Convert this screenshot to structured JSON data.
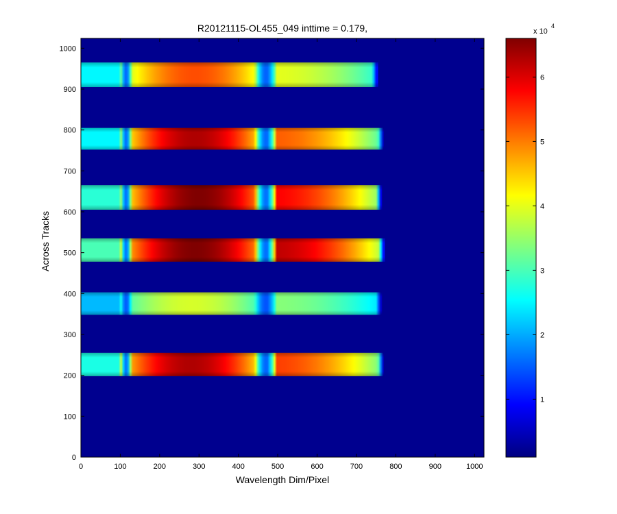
{
  "chart_data": {
    "type": "heatmap",
    "title": "R20121115-OL455_049 inttime = 0.179,",
    "xlabel": "Wavelength Dim/Pixel",
    "ylabel": "Across Tracks",
    "xlim": [
      0,
      1024
    ],
    "ylim": [
      0,
      1024
    ],
    "xticks": [
      "0",
      "100",
      "200",
      "300",
      "400",
      "500",
      "600",
      "700",
      "800",
      "900",
      "1000"
    ],
    "yticks": [
      "0",
      "100",
      "200",
      "300",
      "400",
      "500",
      "600",
      "700",
      "800",
      "900",
      "1000"
    ],
    "colormap": "jet",
    "background_color": "#00008f",
    "colorbar": {
      "ticks": [
        "1",
        "2",
        "3",
        "4",
        "5",
        "6"
      ],
      "exponent_base": "x 10",
      "exponent_power": "4",
      "range": [
        1000,
        66000
      ]
    },
    "spectral_windows": [
      {
        "x_start": 0,
        "x_end": 770
      },
      {
        "gap_center": 115,
        "gap_width": 14
      },
      {
        "gap_center": 470,
        "gap_width": 28
      }
    ],
    "bands": [
      {
        "y_bottom": 905,
        "y_top": 965,
        "x_end": 755,
        "edge_value": 25000,
        "peak_value": 53000,
        "peak_x": 290,
        "right_value": 40000
      },
      {
        "y_bottom": 752,
        "y_top": 805,
        "x_end": 770,
        "edge_value": 25000,
        "peak_value": 63000,
        "peak_x": 290,
        "right_value": 52000
      },
      {
        "y_bottom": 605,
        "y_top": 665,
        "x_end": 765,
        "edge_value": 28000,
        "peak_value": 66000,
        "peak_x": 300,
        "right_value": 58000
      },
      {
        "y_bottom": 478,
        "y_top": 535,
        "x_end": 772,
        "edge_value": 30000,
        "peak_value": 66000,
        "peak_x": 290,
        "right_value": 62000
      },
      {
        "y_bottom": 348,
        "y_top": 403,
        "x_end": 765,
        "edge_value": 21000,
        "peak_value": 39000,
        "peak_x": 280,
        "right_value": 34000
      },
      {
        "y_bottom": 198,
        "y_top": 255,
        "x_end": 770,
        "edge_value": 27000,
        "peak_value": 63000,
        "peak_x": 280,
        "right_value": 54000
      }
    ]
  }
}
